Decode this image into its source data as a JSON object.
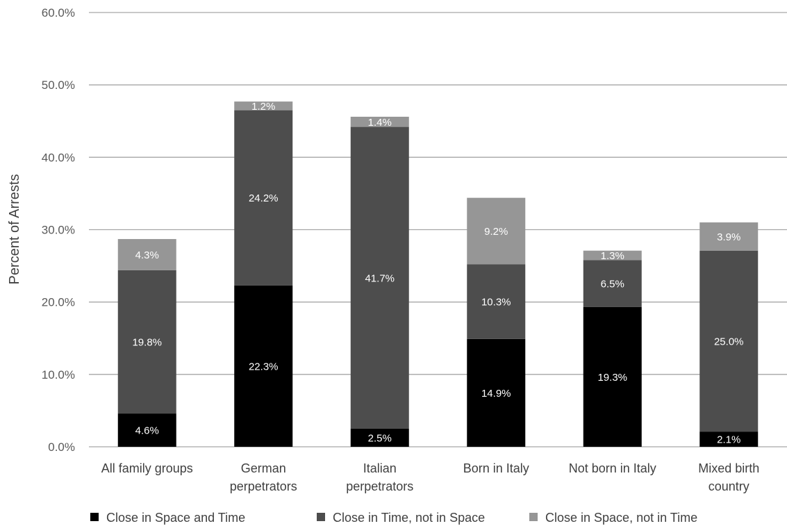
{
  "chart_data": {
    "type": "bar",
    "stacked": true,
    "categories": [
      [
        "All family groups"
      ],
      [
        "German",
        "perpetrators"
      ],
      [
        "Italian",
        "perpetrators"
      ],
      [
        "Born in Italy"
      ],
      [
        "Not born in Italy"
      ],
      [
        "Mixed birth",
        "country"
      ]
    ],
    "series": [
      {
        "name": "Close in Space and Time",
        "color": "#000000",
        "values": [
          4.6,
          22.3,
          2.5,
          14.9,
          19.3,
          2.1
        ]
      },
      {
        "name": "Close in Time, not in Space",
        "color": "#4d4d4d",
        "values": [
          19.8,
          24.2,
          41.7,
          10.3,
          6.5,
          25.0
        ]
      },
      {
        "name": "Close in Space, not in Time",
        "color": "#969696",
        "values": [
          4.3,
          1.2,
          1.4,
          9.2,
          1.3,
          3.9
        ]
      }
    ],
    "ylabel": "Percent of Arrests",
    "xlabel": "",
    "ylim": [
      0,
      60
    ],
    "yticks": [
      "0.0%",
      "10.0%",
      "20.0%",
      "30.0%",
      "40.0%",
      "50.0%",
      "60.0%"
    ],
    "grid": true,
    "gridline_color": "#a6a6a6",
    "legend_position": "bottom"
  }
}
